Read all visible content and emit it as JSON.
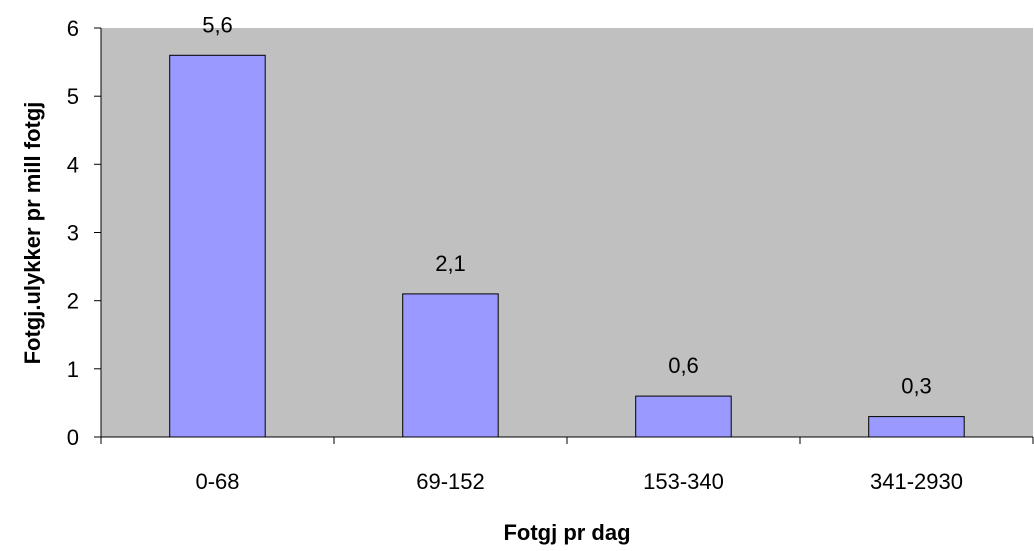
{
  "chart_data": {
    "type": "bar",
    "categories": [
      "0-68",
      "69-152",
      "153-340",
      "341-2930"
    ],
    "values": [
      5.6,
      2.1,
      0.6,
      0.3
    ],
    "data_labels": [
      "5,6",
      "2,1",
      "0,6",
      "0,3"
    ],
    "title": "",
    "xlabel": "Fotgj pr dag",
    "ylabel": "Fotgj.ulykker pr mill fotgj",
    "ylim": [
      0,
      6
    ],
    "yticks": [
      "0",
      "1",
      "2",
      "3",
      "4",
      "5",
      "6"
    ],
    "grid": false,
    "legend": "none",
    "colors": {
      "plot_background": "#c0c0c0",
      "bar_fill": "#9999ff",
      "bar_stroke": "#000000",
      "axis": "#000000"
    }
  }
}
